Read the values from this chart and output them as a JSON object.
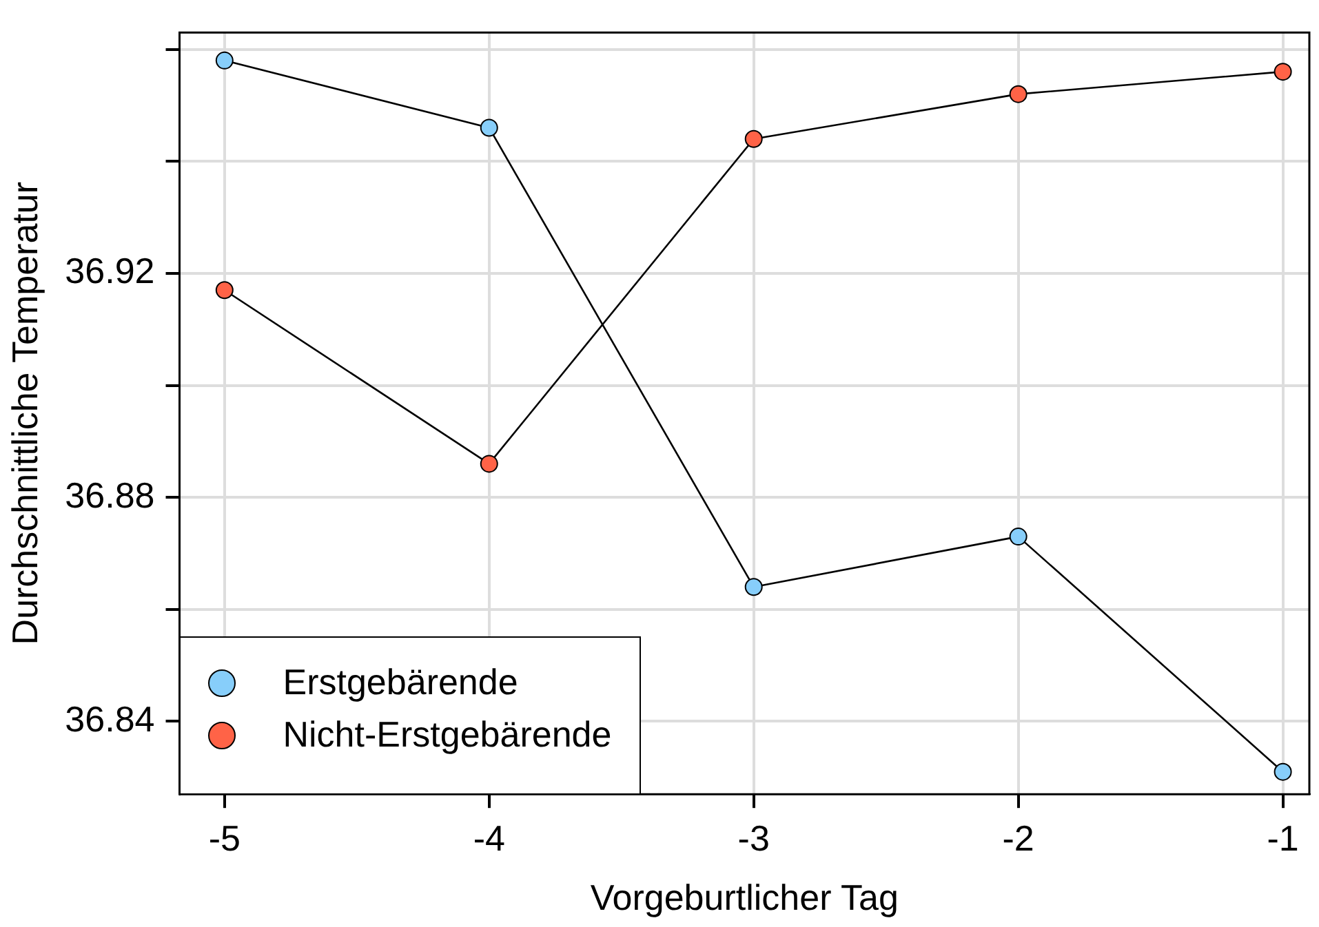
{
  "chart_data": {
    "type": "line",
    "xlabel": "Vorgeburtlicher Tag",
    "ylabel": "Durchschnittliche Temperatur",
    "x": [
      -5,
      -4,
      -3,
      -2,
      -1
    ],
    "series": [
      {
        "name": "Erstgebärende",
        "color": "#87cefa",
        "values": [
          36.958,
          36.946,
          36.864,
          36.873,
          36.831
        ]
      },
      {
        "name": "Nicht-Erstgebärende",
        "color": "#ff6347",
        "values": [
          36.917,
          36.886,
          36.944,
          36.952,
          36.956
        ]
      }
    ],
    "xlim": [
      -5.17,
      -0.9
    ],
    "xticks": [
      -5,
      -4,
      -3,
      -2,
      -1
    ],
    "ylim": [
      36.827,
      36.963
    ],
    "yticks": [
      {
        "value": 36.84,
        "label": "36.84"
      },
      {
        "value": 36.86,
        "label": null
      },
      {
        "value": 36.88,
        "label": "36.88"
      },
      {
        "value": 36.9,
        "label": null
      },
      {
        "value": 36.92,
        "label": "36.92"
      },
      {
        "value": 36.94,
        "label": null
      },
      {
        "value": 36.96,
        "label": null
      }
    ],
    "grid": true,
    "legend": "bottom left",
    "marker": "circle",
    "line_style": "solid"
  }
}
